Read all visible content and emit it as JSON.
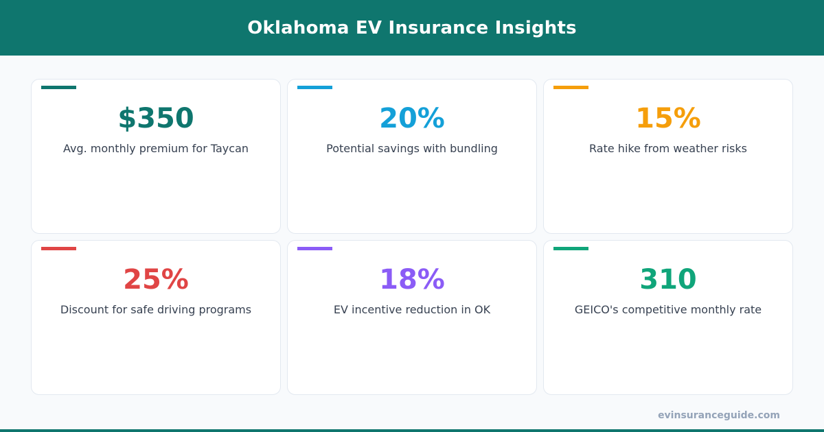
{
  "header": {
    "title": "Oklahoma EV Insurance Insights",
    "background_color": "#0f766e"
  },
  "stats": [
    {
      "value": "$350",
      "label": "Avg. monthly premium for Taycan",
      "color": "#0f766e"
    },
    {
      "value": "20%",
      "label": "Potential savings with bundling",
      "color": "#14a0d8"
    },
    {
      "value": "15%",
      "label": "Rate hike from weather risks",
      "color": "#f59e0b"
    },
    {
      "value": "25%",
      "label": "Discount for safe driving programs",
      "color": "#e04545"
    },
    {
      "value": "18%",
      "label": "EV incentive reduction in OK",
      "color": "#8b5cf6"
    },
    {
      "value": "310",
      "label": "GEICO's competitive monthly rate",
      "color": "#10a57a"
    }
  ],
  "footer": {
    "site": "evinsuranceguide.com"
  }
}
